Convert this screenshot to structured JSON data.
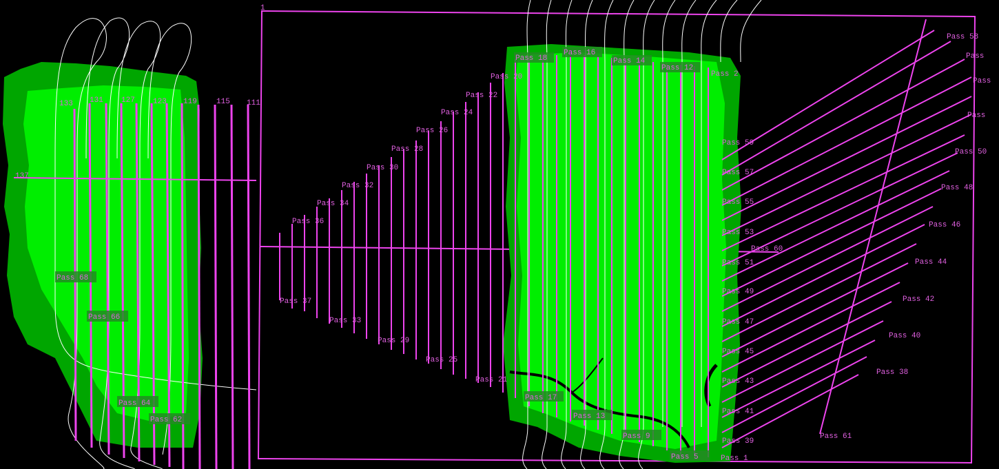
{
  "colors": {
    "background": "#000000",
    "coverage_bright": "#00ee00",
    "coverage_dark": "#00a600",
    "pass_line": "#e040e0",
    "track_line": "#ffffff",
    "label_text": "#e060e0",
    "label_bg": "#2a8a2a"
  },
  "left_panel": {
    "labels": {
      "l133": "133",
      "l131": "131",
      "l127": "127",
      "l123": "123",
      "l119": "119",
      "l115": "115",
      "l111": "111",
      "l137": "137",
      "pass66": "Pass 66",
      "pass68": "Pass 68",
      "pass64": "Pass 64",
      "pass62": "Pass 62"
    }
  },
  "right_panel": {
    "corner_label": "1",
    "top_labels": {
      "p18": "Pass 18",
      "p16": "Pass 16",
      "p14": "Pass 14",
      "p12": "Pass 12",
      "p2": "Pass 2",
      "p20": "Pass 20",
      "p22": "Pass 22",
      "p24": "Pass 24",
      "p26": "Pass 26",
      "p28": "Pass 28",
      "p30": "Pass 30",
      "p32": "Pass 32",
      "p34": "Pass 34",
      "p36": "Pass 36"
    },
    "bottom_labels": {
      "p37": "Pass 37",
      "p33": "Pass 33",
      "p29": "Pass 29",
      "p25": "Pass 25",
      "p21": "Pass 21",
      "p17": "Pass 17",
      "p13": "Pass 13",
      "p9": "Pass 9",
      "p5": "Pass 5",
      "p1": "Pass 1"
    },
    "side_labels": {
      "p59": "Pass 59",
      "p57": "Pass 57",
      "p55": "Pass 55",
      "p53": "Pass 53",
      "p60": "Pass 60",
      "p51": "Pass 51",
      "p49": "Pass 49",
      "p47": "Pass 47",
      "p45": "Pass 45",
      "p43": "Pass 43",
      "p41": "Pass 41",
      "p39": "Pass 39"
    },
    "diag_labels": {
      "p58": "Pass 58",
      "p56": "Pass",
      "p54": "Pass",
      "p52": "Pass",
      "p50": "Pass 50",
      "p48": "Pass 48",
      "p46": "Pass 46",
      "p44": "Pass 44",
      "p42": "Pass 42",
      "p40": "Pass 40",
      "p38": "Pass 38",
      "p61": "Pass 61"
    }
  }
}
